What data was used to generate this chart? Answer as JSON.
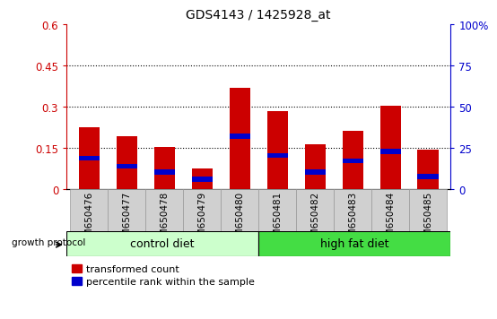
{
  "title": "GDS4143 / 1425928_at",
  "samples": [
    "GSM650476",
    "GSM650477",
    "GSM650478",
    "GSM650479",
    "GSM650480",
    "GSM650481",
    "GSM650482",
    "GSM650483",
    "GSM650484",
    "GSM650485"
  ],
  "red_values": [
    0.225,
    0.195,
    0.155,
    0.075,
    0.37,
    0.285,
    0.165,
    0.215,
    0.305,
    0.145
  ],
  "blue_values": [
    0.105,
    0.075,
    0.055,
    0.028,
    0.185,
    0.115,
    0.055,
    0.095,
    0.13,
    0.038
  ],
  "blue_segment_height": [
    0.018,
    0.018,
    0.018,
    0.018,
    0.018,
    0.018,
    0.018,
    0.018,
    0.018,
    0.018
  ],
  "groups": [
    {
      "label": "control diet",
      "start": 0,
      "end": 5,
      "color": "#ccffcc"
    },
    {
      "label": "high fat diet",
      "start": 5,
      "end": 10,
      "color": "#44dd44"
    }
  ],
  "group_label": "growth protocol",
  "ylim_left": [
    0,
    0.6
  ],
  "ylim_right": [
    0,
    100
  ],
  "yticks_left": [
    0,
    0.15,
    0.3,
    0.45,
    0.6
  ],
  "yticks_right": [
    0,
    25,
    50,
    75,
    100
  ],
  "ytick_labels_left": [
    "0",
    "0.15",
    "0.3",
    "0.45",
    "0.6"
  ],
  "ytick_labels_right": [
    "0",
    "25",
    "50",
    "75",
    "100%"
  ],
  "hlines": [
    0.15,
    0.3,
    0.45
  ],
  "bar_width": 0.55,
  "red_color": "#cc0000",
  "blue_color": "#0000cc",
  "plot_bg": "#ffffff",
  "xtick_bg": "#d0d0d0",
  "legend_red": "transformed count",
  "legend_blue": "percentile rank within the sample"
}
